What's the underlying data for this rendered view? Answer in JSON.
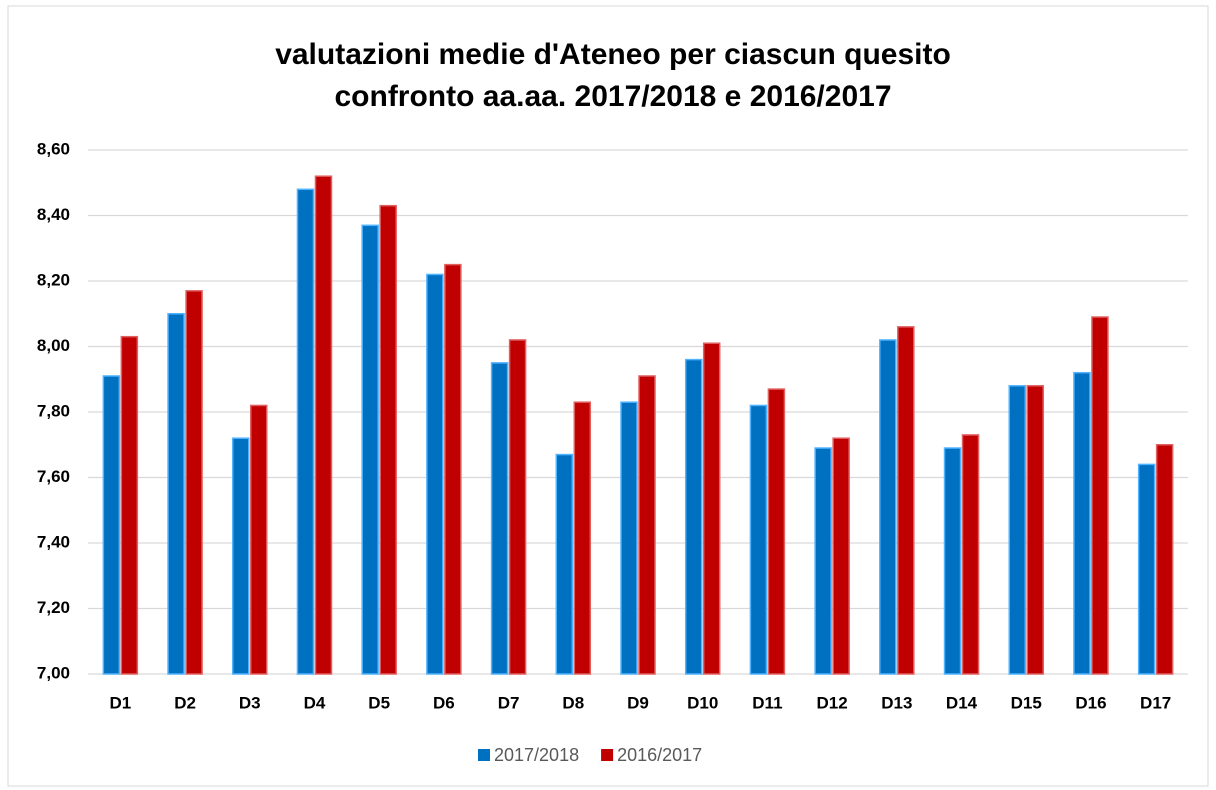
{
  "chart_data": {
    "type": "bar",
    "title": "valutazioni medie d'Ateneo per ciascun quesito",
    "subtitle": "confronto aa.aa. 2017/2018 e 2016/2017",
    "categories": [
      "D1",
      "D2",
      "D3",
      "D4",
      "D5",
      "D6",
      "D7",
      "D8",
      "D9",
      "D10",
      "D11",
      "D12",
      "D13",
      "D14",
      "D15",
      "D16",
      "D17"
    ],
    "series": [
      {
        "name": "2017/2018",
        "color": "#0070c0",
        "values": [
          7.91,
          8.1,
          7.72,
          8.48,
          8.37,
          8.22,
          7.95,
          7.67,
          7.83,
          7.96,
          7.82,
          7.69,
          8.02,
          7.69,
          7.88,
          7.92,
          7.64
        ]
      },
      {
        "name": "2016/2017",
        "color": "#c00000",
        "values": [
          8.03,
          8.17,
          7.82,
          8.52,
          8.43,
          8.25,
          8.02,
          7.83,
          7.91,
          8.01,
          7.87,
          7.72,
          8.06,
          7.73,
          7.88,
          8.09,
          7.7
        ]
      }
    ],
    "ylim": [
      7.0,
      8.6
    ],
    "yticks": [
      {
        "value": 7.0,
        "label": "7,00"
      },
      {
        "value": 7.2,
        "label": "7,20"
      },
      {
        "value": 7.4,
        "label": "7,40"
      },
      {
        "value": 7.6,
        "label": "7,60"
      },
      {
        "value": 7.8,
        "label": "7,80"
      },
      {
        "value": 8.0,
        "label": "8,00"
      },
      {
        "value": 8.2,
        "label": "8,20"
      },
      {
        "value": 8.4,
        "label": "8,40"
      },
      {
        "value": 8.6,
        "label": "8,60"
      }
    ],
    "grid": true,
    "legend": "bottom"
  }
}
